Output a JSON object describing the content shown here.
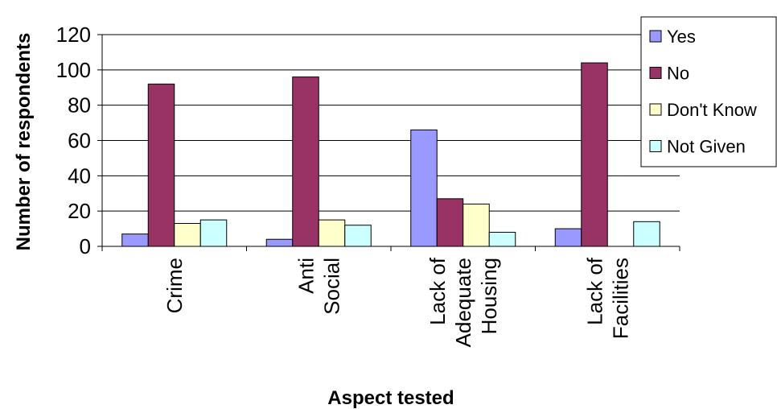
{
  "chart_data": {
    "type": "bar",
    "categories": [
      [
        "Crime"
      ],
      [
        "Anti",
        "Social"
      ],
      [
        "Lack of",
        "Adequate",
        "Housing"
      ],
      [
        "Lack of",
        "Facilities"
      ]
    ],
    "series": [
      {
        "name": "Yes",
        "color": "#9999ff",
        "values": [
          7,
          4,
          66,
          10
        ]
      },
      {
        "name": "No",
        "color": "#993366",
        "values": [
          92,
          96,
          27,
          104
        ]
      },
      {
        "name": "Don't Know",
        "color": "#ffffcc",
        "values": [
          13,
          15,
          24,
          0
        ]
      },
      {
        "name": "Not Given",
        "color": "#ccffff",
        "values": [
          15,
          12,
          8,
          14
        ]
      }
    ],
    "title": "",
    "xlabel": "Aspect tested",
    "ylabel": "Number of respondents",
    "ylim": [
      0,
      120
    ],
    "yticks": [
      0,
      20,
      40,
      60,
      80,
      100,
      120
    ],
    "grid": true,
    "legend_position": "right"
  }
}
